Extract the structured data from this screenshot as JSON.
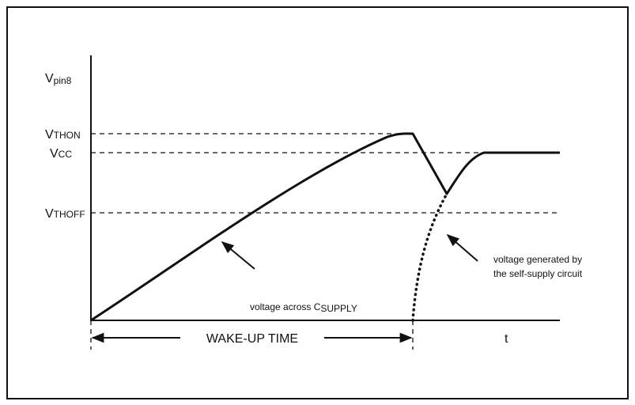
{
  "labels": {
    "vpin8": {
      "main": "V",
      "sub": "pin8"
    },
    "vthon": {
      "main": "V",
      "sub": "THON"
    },
    "vcc": {
      "main": "V",
      "sub": "CC"
    },
    "vthoff": {
      "main": "V",
      "sub": "THOFF"
    },
    "x_axis": "t"
  },
  "annotations": {
    "supply": {
      "main": "voltage across C",
      "sub": "SUPPLY"
    },
    "self_supply": [
      "voltage generated by",
      "the self-supply circuit"
    ],
    "wake_up": "WAKE-UP TIME"
  }
}
